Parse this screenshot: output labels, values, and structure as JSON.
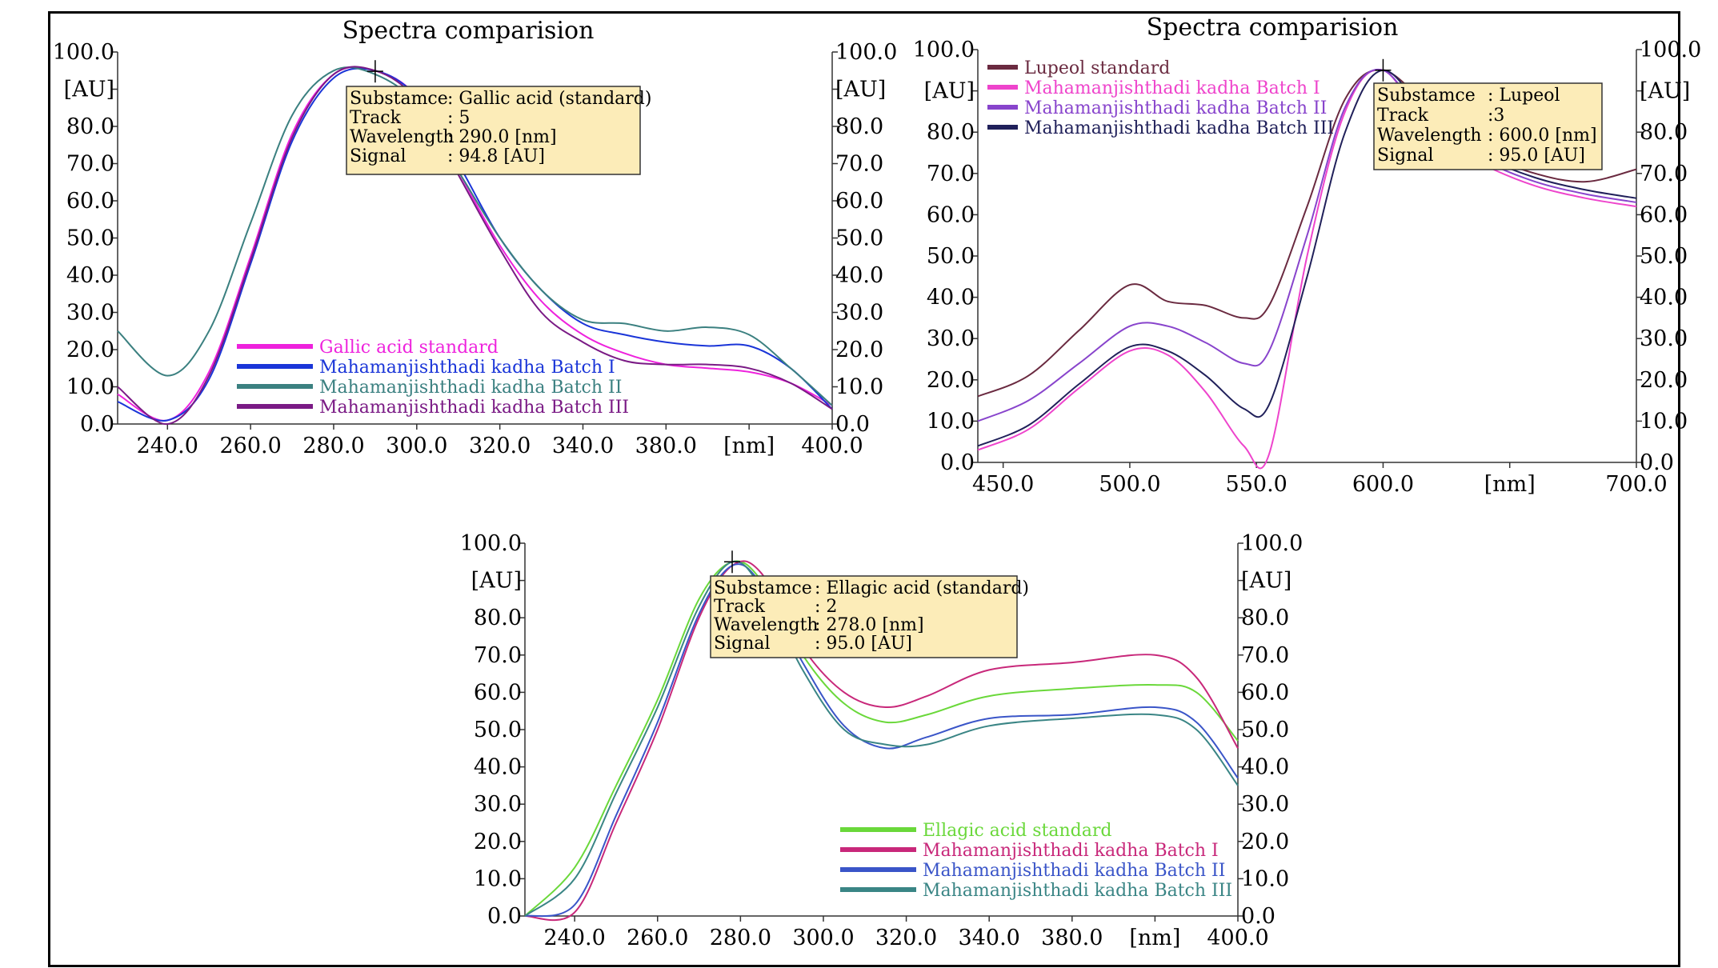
{
  "chart_data": [
    {
      "type": "line",
      "title": "Spectra comparision",
      "xlabel": "[nm]",
      "ylabel": "[AU]",
      "y2label": "[AU]",
      "xlim": [
        228,
        400
      ],
      "ylim": [
        0,
        100
      ],
      "x_ticks": [
        "240.0",
        "260.0",
        "280.0",
        "300.0",
        "320.0",
        "340.0",
        "380.0",
        "[nm]",
        "400.0"
      ],
      "y_ticks": [
        "100.0",
        "[AU]",
        "80.0",
        "70.0",
        "60.0",
        "50.0",
        "40.0",
        "30.0",
        "20.0",
        "10.0",
        "0.0"
      ],
      "legend_position": "bottom-left",
      "info_box": [
        {
          "key": "Substamce",
          "value": ": Gallic acid (standard)"
        },
        {
          "key": "Track",
          "value": ":  5"
        },
        {
          "key": "Wavelength",
          "value": ": 290.0 [nm]"
        },
        {
          "key": "Signal",
          "value": ":    94.8 [AU]"
        }
      ],
      "marker": {
        "x": 290,
        "y": 94.8
      },
      "series": [
        {
          "name": "Gallic acid standard",
          "color": "#ee22dd",
          "x": [
            228,
            240,
            250,
            260,
            270,
            280,
            290,
            300,
            310,
            320,
            330,
            340,
            350,
            360,
            370,
            380,
            390,
            400
          ],
          "values": [
            8,
            1,
            14,
            45,
            78,
            94,
            95,
            88,
            68,
            48,
            33,
            24,
            19,
            16,
            15,
            14,
            11,
            5
          ]
        },
        {
          "name": "Mahamanjishthadi kadha Batch I",
          "color": "#1a35d8",
          "x": [
            228,
            240,
            250,
            260,
            270,
            280,
            290,
            300,
            310,
            320,
            330,
            340,
            350,
            360,
            370,
            380,
            390,
            400
          ],
          "values": [
            6,
            1,
            12,
            43,
            76,
            93,
            95,
            88,
            70,
            50,
            36,
            27,
            24,
            22,
            21,
            21,
            15,
            4
          ]
        },
        {
          "name": "Mahamanjishthadi kadha Batch II",
          "color": "#3b8080",
          "x": [
            228,
            240,
            250,
            260,
            270,
            280,
            290,
            300,
            310,
            320,
            330,
            340,
            350,
            360,
            370,
            380,
            390,
            400
          ],
          "values": [
            25,
            13,
            25,
            54,
            83,
            95,
            94,
            86,
            68,
            50,
            36,
            28,
            27,
            25,
            26,
            24,
            15,
            5
          ]
        },
        {
          "name": "Mahamanjishthadi kadha Batch III",
          "color": "#7a1a85",
          "x": [
            228,
            240,
            250,
            260,
            270,
            280,
            290,
            300,
            310,
            320,
            330,
            340,
            350,
            360,
            370,
            380,
            390,
            400
          ],
          "values": [
            10,
            0,
            13,
            44,
            77,
            94,
            95,
            87,
            67,
            47,
            30,
            22,
            17,
            16,
            16,
            15,
            11,
            4
          ]
        }
      ]
    },
    {
      "type": "line",
      "title": "Spectra comparision",
      "xlabel": "[nm]",
      "ylabel": "[AU]",
      "y2label": "[AU]",
      "xlim": [
        440,
        700
      ],
      "ylim": [
        0,
        100
      ],
      "x_ticks": [
        "450.0",
        "500.0",
        "550.0",
        "600.0",
        "[nm]",
        "700.0"
      ],
      "y_ticks": [
        "100.0",
        "[AU]",
        "80.0",
        "70.0",
        "60.0",
        "50.0",
        "40.0",
        "30.0",
        "20.0",
        "10.0",
        "0.0"
      ],
      "legend_position": "top-left",
      "info_box": [
        {
          "key": "Substamce",
          "value": ": Lupeol"
        },
        {
          "key": "Track",
          "value": ":3"
        },
        {
          "key": "Wavelength",
          "value": ": 600.0 [nm]"
        },
        {
          "key": "Signal",
          "value": ":    95.0 [AU]"
        }
      ],
      "marker": {
        "x": 600,
        "y": 95
      },
      "series": [
        {
          "name": "Lupeol standard",
          "color": "#6a2a40",
          "x": [
            440,
            460,
            480,
            500,
            515,
            530,
            545,
            555,
            570,
            585,
            600,
            620,
            640,
            660,
            680,
            700
          ],
          "values": [
            16,
            21,
            32,
            43,
            39,
            38,
            35,
            38,
            62,
            88,
            95,
            85,
            75,
            70,
            68,
            71
          ]
        },
        {
          "name": "Mahamanjishthadi kadha Batch I",
          "color": "#ee44cc",
          "x": [
            440,
            460,
            480,
            500,
            515,
            530,
            545,
            555,
            570,
            585,
            600,
            620,
            640,
            660,
            680,
            700
          ],
          "values": [
            3,
            8,
            18,
            27,
            26,
            17,
            4,
            2,
            50,
            85,
            95,
            79,
            72,
            67,
            64,
            62
          ]
        },
        {
          "name": "Mahamanjishthadi kadha Batch II",
          "color": "#8844cc",
          "x": [
            440,
            460,
            480,
            500,
            515,
            530,
            545,
            555,
            570,
            585,
            600,
            620,
            640,
            660,
            680,
            700
          ],
          "values": [
            10,
            15,
            24,
            33,
            33,
            29,
            24,
            27,
            55,
            86,
            95,
            80,
            73,
            68,
            65,
            63
          ]
        },
        {
          "name": "Mahamanjishthadi kadha Batch III",
          "color": "#20205a",
          "x": [
            440,
            460,
            480,
            500,
            515,
            530,
            545,
            555,
            570,
            585,
            600,
            620,
            640,
            660,
            680,
            700
          ],
          "values": [
            4,
            9,
            19,
            28,
            27,
            21,
            13,
            14,
            45,
            80,
            95,
            82,
            74,
            69,
            66,
            64
          ]
        }
      ]
    },
    {
      "type": "line",
      "title": "",
      "xlabel": "[nm]",
      "ylabel": "[AU]",
      "y2label": "[AU]",
      "xlim": [
        228,
        400
      ],
      "ylim": [
        0,
        100
      ],
      "x_ticks": [
        "240.0",
        "260.0",
        "280.0",
        "300.0",
        "320.0",
        "340.0",
        "380.0",
        "[nm]",
        "400.0"
      ],
      "y_ticks": [
        "100.0",
        "[AU]",
        "80.0",
        "70.0",
        "60.0",
        "50.0",
        "40.0",
        "30.0",
        "20.0",
        "10.0",
        "0.0"
      ],
      "legend_position": "bottom-right",
      "info_box": [
        {
          "key": "Substamce",
          "value": ": Ellagic acid (standard)"
        },
        {
          "key": "Track",
          "value": ":  2"
        },
        {
          "key": "Wavelength",
          "value": ": 278.0 [nm]"
        },
        {
          "key": "Signal",
          "value": ":    95.0 [AU]"
        }
      ],
      "marker": {
        "x": 278,
        "y": 95
      },
      "series": [
        {
          "name": "Ellagic acid standard",
          "color": "#6ad83a",
          "x": [
            228,
            240,
            250,
            260,
            270,
            278,
            285,
            295,
            305,
            315,
            325,
            340,
            360,
            380,
            390,
            400
          ],
          "values": [
            0,
            13,
            35,
            58,
            85,
            95,
            90,
            70,
            57,
            52,
            54,
            59,
            61,
            62,
            60,
            47
          ]
        },
        {
          "name": "Mahamanjishthadi kadha Batch I",
          "color": "#c8287a",
          "x": [
            228,
            240,
            250,
            260,
            270,
            278,
            285,
            295,
            305,
            315,
            325,
            340,
            360,
            380,
            390,
            400
          ],
          "values": [
            0,
            1,
            25,
            50,
            80,
            94,
            92,
            72,
            60,
            56,
            59,
            66,
            68,
            70,
            64,
            45
          ]
        },
        {
          "name": "Mahamanjishthadi kadha Batch II",
          "color": "#3a55c8",
          "x": [
            228,
            240,
            250,
            260,
            270,
            278,
            285,
            295,
            305,
            315,
            325,
            340,
            360,
            380,
            390,
            400
          ],
          "values": [
            0,
            3,
            27,
            52,
            81,
            94,
            89,
            68,
            51,
            45,
            48,
            53,
            54,
            56,
            52,
            37
          ]
        },
        {
          "name": "Mahamanjishthadi kadha Batch III",
          "color": "#3a8585",
          "x": [
            228,
            240,
            250,
            260,
            270,
            278,
            285,
            295,
            305,
            315,
            325,
            340,
            360,
            380,
            390,
            400
          ],
          "values": [
            0,
            10,
            33,
            56,
            83,
            95,
            88,
            66,
            50,
            46,
            46,
            51,
            53,
            54,
            50,
            35
          ]
        }
      ]
    }
  ]
}
